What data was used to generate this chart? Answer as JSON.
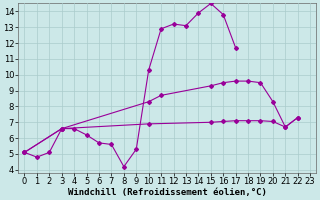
{
  "background_color": "#cce8e8",
  "line_color": "#990099",
  "grid_color": "#aacccc",
  "xlabel": "Windchill (Refroidissement éolien,°C)",
  "xlabel_fontsize": 6.5,
  "tick_fontsize": 6.0,
  "xlim": [
    -0.5,
    23.5
  ],
  "ylim": [
    3.8,
    14.5
  ],
  "yticks": [
    4,
    5,
    6,
    7,
    8,
    9,
    10,
    11,
    12,
    13,
    14
  ],
  "xticks": [
    0,
    1,
    2,
    3,
    4,
    5,
    6,
    7,
    8,
    9,
    10,
    11,
    12,
    13,
    14,
    15,
    16,
    17,
    18,
    19,
    20,
    21,
    22,
    23
  ],
  "series1_x": [
    0,
    1,
    2,
    3,
    4,
    5,
    6,
    7,
    8,
    9,
    10,
    11,
    12,
    13,
    14,
    15,
    16,
    17
  ],
  "series1_y": [
    5.1,
    4.8,
    5.1,
    6.6,
    6.6,
    6.2,
    5.7,
    5.6,
    4.2,
    5.3,
    10.3,
    12.9,
    13.2,
    13.1,
    13.9,
    14.5,
    13.8,
    11.7
  ],
  "series2_x": [
    0,
    3,
    10,
    11,
    15,
    16,
    17,
    18,
    19,
    20,
    21,
    22
  ],
  "series2_y": [
    5.1,
    6.6,
    8.3,
    8.7,
    9.3,
    9.5,
    9.6,
    9.6,
    9.5,
    8.3,
    6.7,
    7.3
  ],
  "series3_x": [
    0,
    3,
    10,
    15,
    16,
    17,
    18,
    19,
    20,
    21,
    22
  ],
  "series3_y": [
    5.1,
    6.6,
    6.9,
    7.0,
    7.05,
    7.1,
    7.1,
    7.1,
    7.05,
    6.7,
    7.3
  ]
}
